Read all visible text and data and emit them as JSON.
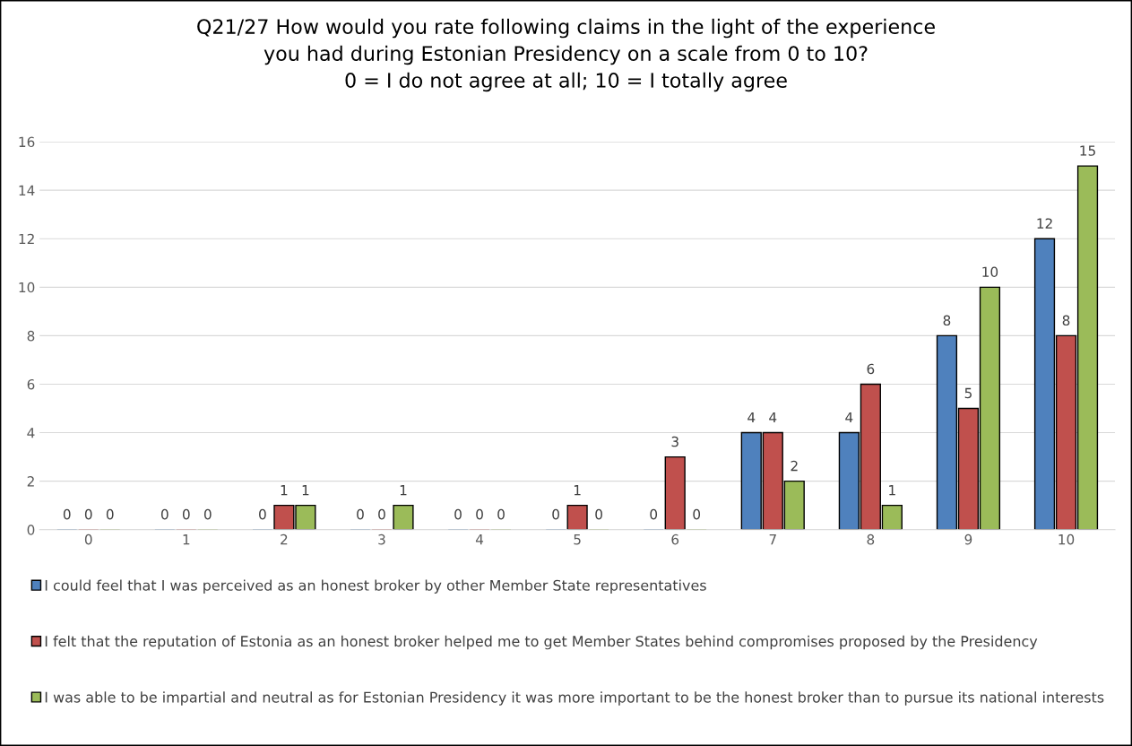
{
  "chart_data": {
    "type": "bar",
    "title": "Q21/27 How would you rate following claims in the light of the experience\nyou had during Estonian Presidency on a scale from 0 to 10?\n0 = I do not agree at all; 10 = I totally agree",
    "categories": [
      "0",
      "1",
      "2",
      "3",
      "4",
      "5",
      "6",
      "7",
      "8",
      "9",
      "10"
    ],
    "series": [
      {
        "name": "I could feel that I was perceived as an honest broker by other Member State representatives",
        "color": "#4f81bd",
        "values": [
          0,
          0,
          0,
          0,
          0,
          0,
          0,
          4,
          4,
          8,
          12
        ]
      },
      {
        "name": "I felt that the reputation of Estonia as an honest broker helped me to get Member States behind compromises proposed by the Presidency",
        "color": "#c0504d",
        "values": [
          0,
          0,
          1,
          0,
          0,
          1,
          3,
          4,
          6,
          5,
          8
        ]
      },
      {
        "name": "I was able to be impartial and neutral as for Estonian Presidency it was more important to be the honest broker than to pursue its national interests",
        "color": "#9bbb59",
        "values": [
          0,
          0,
          1,
          1,
          0,
          0,
          0,
          2,
          1,
          10,
          15
        ]
      }
    ],
    "ylim": [
      0,
      16
    ],
    "yticks": [
      0,
      2,
      4,
      6,
      8,
      10,
      12,
      14,
      16
    ],
    "grid": "y",
    "data_labels": true,
    "legend": "bottom"
  }
}
